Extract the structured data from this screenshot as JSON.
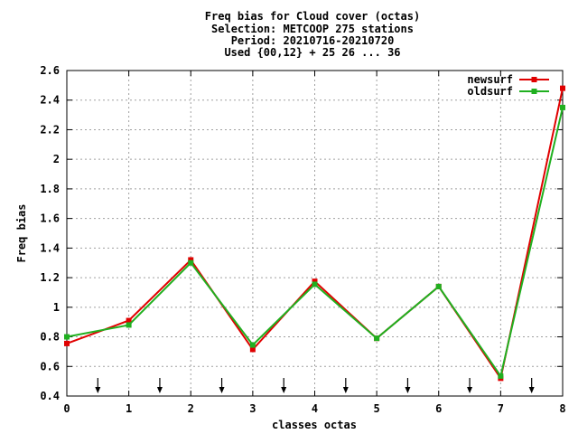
{
  "chart_data": {
    "type": "line",
    "title_lines": [
      "Freq bias  for Cloud cover (octas)",
      "Selection: METCOOP    275 stations",
      "Period: 20210716-20210720",
      "Used {00,12} + 25 26 ... 36"
    ],
    "xlabel": "classes octas",
    "ylabel": "Freq bias",
    "xlim": [
      0,
      8
    ],
    "ylim": [
      0.4,
      2.6
    ],
    "x_ticks": [
      "0",
      "1",
      "2",
      "3",
      "4",
      "5",
      "6",
      "7",
      "8"
    ],
    "y_ticks": [
      "0.4",
      "0.6",
      "0.8",
      "1",
      "1.2",
      "1.4",
      "1.6",
      "1.8",
      "2",
      "2.2",
      "2.4",
      "2.6"
    ],
    "grid": true,
    "legend_position": "top-right",
    "x": [
      0,
      1,
      2,
      3,
      4,
      5,
      6,
      7,
      8
    ],
    "series": [
      {
        "name": "newsurf",
        "color": "#e00000",
        "values": [
          0.755,
          0.91,
          1.32,
          0.715,
          1.175,
          0.79,
          1.14,
          0.52,
          2.48
        ]
      },
      {
        "name": "oldsurf",
        "color": "#20b020",
        "values": [
          0.8,
          0.88,
          1.3,
          0.745,
          1.155,
          0.79,
          1.14,
          0.535,
          2.35
        ]
      }
    ],
    "arrow_markers_x": [
      0.5,
      1.5,
      2.5,
      3.5,
      4.5,
      5.5,
      6.5,
      7.5
    ]
  }
}
